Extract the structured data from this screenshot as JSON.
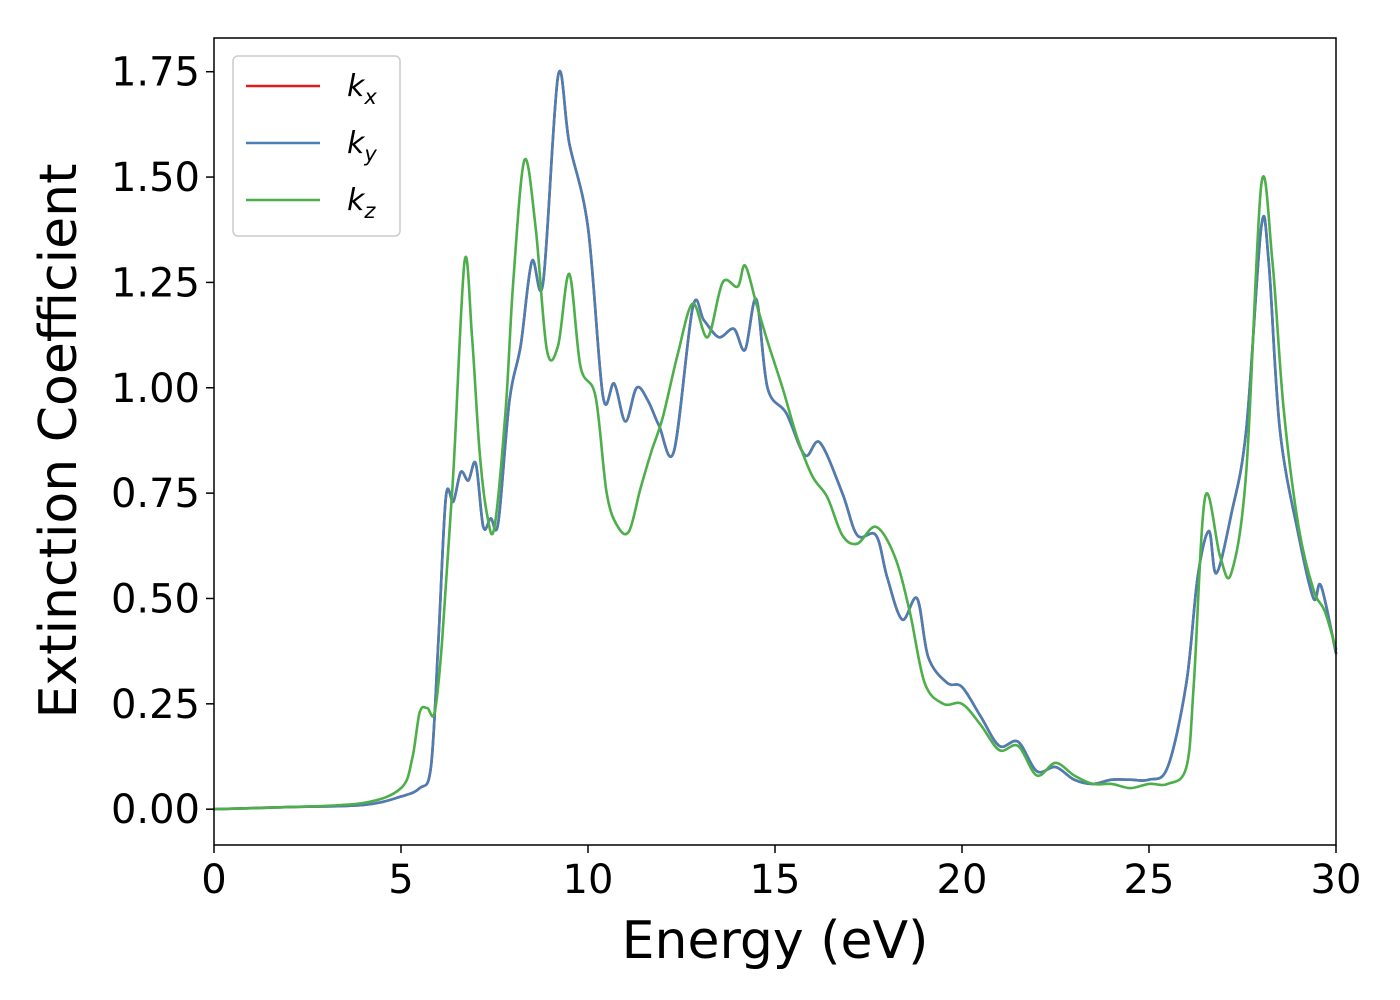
{
  "chart_data": {
    "type": "line",
    "title": "",
    "xlabel": "Energy (eV)",
    "ylabel": "Extinction Coefficient",
    "xlim": [
      0,
      30
    ],
    "ylim": [
      -0.085,
      1.83
    ],
    "xticks": [
      0,
      5,
      10,
      15,
      20,
      25,
      30
    ],
    "xtick_labels": [
      "0",
      "5",
      "10",
      "15",
      "20",
      "25",
      "30"
    ],
    "yticks": [
      0,
      0.25,
      0.5,
      0.75,
      1.0,
      1.25,
      1.5,
      1.75
    ],
    "ytick_labels": [
      "0.00",
      "0.25",
      "0.50",
      "0.75",
      "1.00",
      "1.25",
      "1.50",
      "1.75"
    ],
    "grid": false,
    "legend_position": "top-left",
    "series": [
      {
        "name": "k",
        "subscript": "x",
        "color": "#e41a1c",
        "x": [
          0,
          2,
          4,
          5,
          5.5,
          5.8,
          6.0,
          6.2,
          6.4,
          6.6,
          6.8,
          7.0,
          7.2,
          7.4,
          7.6,
          7.9,
          8.2,
          8.5,
          8.8,
          9.2,
          9.5,
          10.0,
          10.4,
          10.7,
          11.0,
          11.3,
          11.6,
          11.9,
          12.3,
          12.8,
          13.1,
          13.5,
          13.9,
          14.2,
          14.5,
          14.8,
          15.3,
          15.8,
          16.2,
          16.8,
          17.2,
          17.7,
          18.0,
          18.4,
          18.8,
          19.1,
          19.6,
          20.0,
          20.5,
          21.0,
          21.5,
          22.0,
          22.5,
          23.0,
          23.5,
          24.0,
          24.5,
          25.0,
          25.5,
          26.0,
          26.3,
          26.6,
          26.8,
          27.2,
          27.6,
          28.0,
          28.2,
          28.5,
          29.0,
          29.4,
          29.6,
          30.0
        ],
        "y": [
          0.0,
          0.005,
          0.01,
          0.03,
          0.05,
          0.1,
          0.4,
          0.74,
          0.73,
          0.8,
          0.78,
          0.82,
          0.67,
          0.69,
          0.68,
          0.97,
          1.1,
          1.3,
          1.25,
          1.74,
          1.58,
          1.38,
          0.98,
          1.01,
          0.92,
          1.0,
          0.97,
          0.91,
          0.85,
          1.19,
          1.16,
          1.12,
          1.14,
          1.09,
          1.21,
          1.0,
          0.94,
          0.84,
          0.87,
          0.75,
          0.65,
          0.65,
          0.55,
          0.45,
          0.5,
          0.36,
          0.3,
          0.29,
          0.22,
          0.15,
          0.16,
          0.09,
          0.1,
          0.07,
          0.06,
          0.07,
          0.07,
          0.07,
          0.1,
          0.3,
          0.55,
          0.66,
          0.56,
          0.7,
          0.9,
          1.38,
          1.3,
          0.9,
          0.65,
          0.5,
          0.53,
          0.37
        ]
      },
      {
        "name": "k",
        "subscript": "y",
        "color": "#4a7fb5",
        "x": [
          0,
          2,
          4,
          5,
          5.5,
          5.8,
          6.0,
          6.2,
          6.4,
          6.6,
          6.8,
          7.0,
          7.2,
          7.4,
          7.6,
          7.9,
          8.2,
          8.5,
          8.8,
          9.2,
          9.5,
          10.0,
          10.4,
          10.7,
          11.0,
          11.3,
          11.6,
          11.9,
          12.3,
          12.8,
          13.1,
          13.5,
          13.9,
          14.2,
          14.5,
          14.8,
          15.3,
          15.8,
          16.2,
          16.8,
          17.2,
          17.7,
          18.0,
          18.4,
          18.8,
          19.1,
          19.6,
          20.0,
          20.5,
          21.0,
          21.5,
          22.0,
          22.5,
          23.0,
          23.5,
          24.0,
          24.5,
          25.0,
          25.5,
          26.0,
          26.3,
          26.6,
          26.8,
          27.2,
          27.6,
          28.0,
          28.2,
          28.5,
          29.0,
          29.4,
          29.6,
          30.0
        ],
        "y": [
          0.0,
          0.005,
          0.01,
          0.03,
          0.05,
          0.1,
          0.4,
          0.74,
          0.73,
          0.8,
          0.78,
          0.82,
          0.67,
          0.69,
          0.68,
          0.97,
          1.1,
          1.3,
          1.25,
          1.74,
          1.58,
          1.38,
          0.98,
          1.01,
          0.92,
          1.0,
          0.97,
          0.91,
          0.85,
          1.19,
          1.16,
          1.12,
          1.14,
          1.09,
          1.21,
          1.0,
          0.94,
          0.84,
          0.87,
          0.75,
          0.65,
          0.65,
          0.55,
          0.45,
          0.5,
          0.36,
          0.3,
          0.29,
          0.22,
          0.15,
          0.16,
          0.09,
          0.1,
          0.07,
          0.06,
          0.07,
          0.07,
          0.07,
          0.1,
          0.3,
          0.55,
          0.66,
          0.56,
          0.7,
          0.9,
          1.38,
          1.3,
          0.9,
          0.65,
          0.5,
          0.53,
          0.37
        ]
      },
      {
        "name": "k",
        "subscript": "z",
        "color": "#4daf4a",
        "x": [
          0,
          2,
          4,
          5.0,
          5.3,
          5.5,
          5.7,
          5.9,
          6.1,
          6.4,
          6.7,
          6.9,
          7.1,
          7.3,
          7.5,
          7.8,
          8.0,
          8.3,
          8.6,
          8.9,
          9.2,
          9.5,
          9.8,
          10.2,
          10.5,
          10.8,
          11.1,
          11.4,
          11.7,
          12.0,
          12.4,
          12.8,
          13.2,
          13.6,
          14.0,
          14.2,
          14.5,
          14.8,
          15.2,
          15.6,
          16.0,
          16.4,
          16.8,
          17.2,
          17.7,
          18.2,
          18.6,
          19.0,
          19.5,
          20.0,
          20.5,
          21.0,
          21.5,
          22.0,
          22.5,
          23.0,
          23.5,
          24.0,
          24.5,
          25.0,
          25.5,
          26.0,
          26.2,
          26.5,
          26.9,
          27.2,
          27.6,
          28.0,
          28.3,
          28.6,
          29.0,
          29.4,
          29.7,
          30.0
        ],
        "y": [
          0.0,
          0.005,
          0.015,
          0.05,
          0.12,
          0.23,
          0.24,
          0.23,
          0.4,
          0.8,
          1.3,
          1.12,
          0.85,
          0.7,
          0.67,
          0.95,
          1.25,
          1.54,
          1.38,
          1.09,
          1.1,
          1.27,
          1.05,
          0.98,
          0.75,
          0.67,
          0.66,
          0.76,
          0.85,
          0.93,
          1.08,
          1.2,
          1.12,
          1.25,
          1.24,
          1.29,
          1.2,
          1.11,
          1.0,
          0.88,
          0.79,
          0.74,
          0.65,
          0.63,
          0.67,
          0.6,
          0.47,
          0.3,
          0.25,
          0.25,
          0.2,
          0.14,
          0.15,
          0.08,
          0.11,
          0.08,
          0.06,
          0.06,
          0.05,
          0.06,
          0.06,
          0.1,
          0.3,
          0.74,
          0.6,
          0.56,
          0.8,
          1.48,
          1.3,
          0.95,
          0.67,
          0.52,
          0.47,
          0.38
        ]
      }
    ]
  }
}
